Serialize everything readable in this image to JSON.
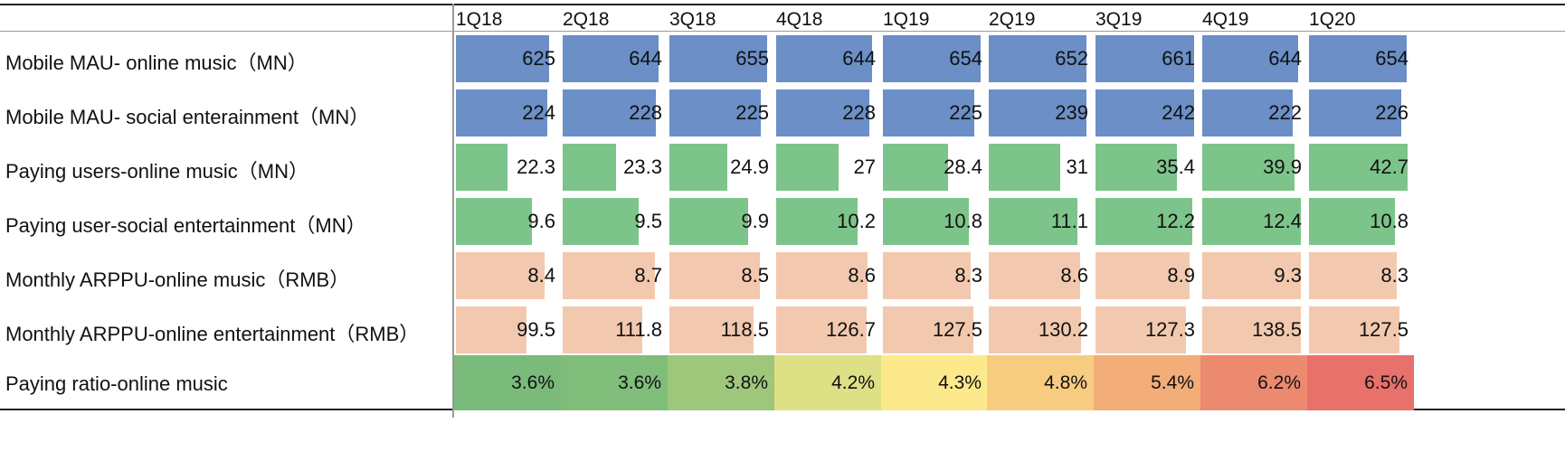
{
  "chart_data": {
    "type": "table",
    "title": "",
    "columns": [
      "1Q18",
      "2Q18",
      "3Q18",
      "4Q18",
      "1Q19",
      "2Q19",
      "3Q19",
      "4Q19",
      "1Q20"
    ],
    "rows": [
      {
        "label": "Mobile MAU- online music（MN）",
        "style": "databar",
        "color": "#6b8fc6",
        "values": [
          625,
          644,
          655,
          644,
          654,
          652,
          661,
          644,
          654
        ],
        "display": [
          "625",
          "644",
          "655",
          "644",
          "654",
          "652",
          "661",
          "644",
          "654"
        ]
      },
      {
        "label": "Mobile MAU- social enterainment（MN）",
        "style": "databar",
        "color": "#6b8fc6",
        "values": [
          224,
          228,
          225,
          228,
          225,
          239,
          242,
          222,
          226
        ],
        "display": [
          "224",
          "228",
          "225",
          "228",
          "225",
          "239",
          "242",
          "222",
          "226"
        ]
      },
      {
        "label": "Paying users-online music（MN）",
        "style": "databar",
        "color": "#7dc48a",
        "values": [
          22.3,
          23.3,
          24.9,
          27,
          28.4,
          31,
          35.4,
          39.9,
          42.7
        ],
        "display": [
          "22.3",
          "23.3",
          "24.9",
          "27",
          "28.4",
          "31",
          "35.4",
          "39.9",
          "42.7"
        ]
      },
      {
        "label": "Paying user-social entertainment（MN）",
        "style": "databar",
        "color": "#7dc48a",
        "values": [
          9.6,
          9.5,
          9.9,
          10.2,
          10.8,
          11.1,
          12.2,
          12.4,
          10.8
        ],
        "display": [
          "9.6",
          "9.5",
          "9.9",
          "10.2",
          "10.8",
          "11.1",
          "12.2",
          "12.4",
          "10.8"
        ]
      },
      {
        "label": "Monthly ARPPU-online music（RMB）",
        "style": "databar",
        "color": "#f2c9ae",
        "values": [
          8.4,
          8.7,
          8.5,
          8.6,
          8.3,
          8.6,
          8.9,
          9.3,
          8.3
        ],
        "display": [
          "8.4",
          "8.7",
          "8.5",
          "8.6",
          "8.3",
          "8.6",
          "8.9",
          "9.3",
          "8.3"
        ]
      },
      {
        "label": "Monthly ARPPU-online entertainment（RMB）",
        "style": "databar",
        "color": "#f2c9ae",
        "values": [
          99.5,
          111.8,
          118.5,
          126.7,
          127.5,
          130.2,
          127.3,
          138.5,
          127.5
        ],
        "display": [
          "99.5",
          "111.8",
          "118.5",
          "126.7",
          "127.5",
          "130.2",
          "127.3",
          "138.5",
          "127.5"
        ]
      },
      {
        "label": "Paying ratio-online music",
        "style": "heatmap",
        "colors": [
          "#7aba7a",
          "#80bd7b",
          "#9ec77c",
          "#dde085",
          "#fbe98c",
          "#f7cc80",
          "#f2ad78",
          "#ec8a70",
          "#e8716c"
        ],
        "values": [
          3.6,
          3.6,
          3.8,
          4.2,
          4.3,
          4.8,
          5.4,
          6.2,
          6.5
        ],
        "display": [
          "3.6%",
          "3.6%",
          "3.8%",
          "4.2%",
          "4.3%",
          "4.8%",
          "5.4%",
          "6.2%",
          "6.5%"
        ]
      }
    ]
  }
}
